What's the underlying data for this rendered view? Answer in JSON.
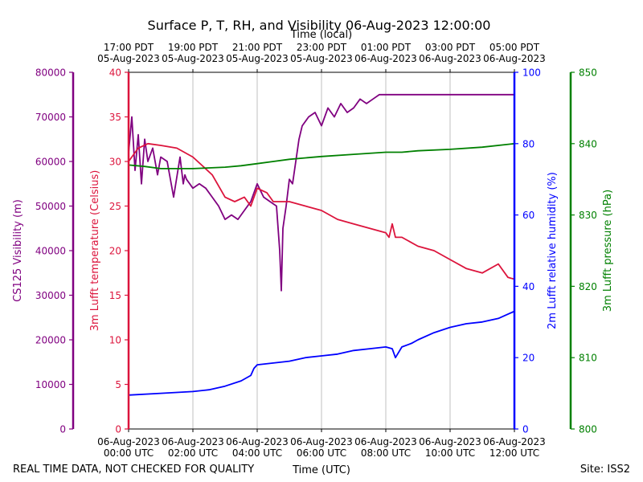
{
  "chart_data": {
    "type": "line",
    "title": "Surface P, T, RH, and Visibility 06-Aug-2023 12:00:00",
    "xlabel": "Time (UTC)",
    "top_xlabel": "Time (local)",
    "footer_left": "REAL TIME DATA, NOT CHECKED FOR QUALITY",
    "footer_right": "Site: ISS2",
    "xlim": [
      0,
      12
    ],
    "grid": "vertical",
    "bottom_ticks": [
      {
        "x": 0,
        "line1": "06-Aug-2023",
        "line2": "00:00 UTC"
      },
      {
        "x": 2,
        "line1": "06-Aug-2023",
        "line2": "02:00 UTC"
      },
      {
        "x": 4,
        "line1": "06-Aug-2023",
        "line2": "04:00 UTC"
      },
      {
        "x": 6,
        "line1": "06-Aug-2023",
        "line2": "06:00 UTC"
      },
      {
        "x": 8,
        "line1": "06-Aug-2023",
        "line2": "08:00 UTC"
      },
      {
        "x": 10,
        "line1": "06-Aug-2023",
        "line2": "10:00 UTC"
      },
      {
        "x": 12,
        "line1": "06-Aug-2023",
        "line2": "12:00 UTC"
      }
    ],
    "top_ticks": [
      {
        "x": 0,
        "line1": "17:00 PDT",
        "line2": "05-Aug-2023"
      },
      {
        "x": 2,
        "line1": "19:00 PDT",
        "line2": "05-Aug-2023"
      },
      {
        "x": 4,
        "line1": "21:00 PDT",
        "line2": "05-Aug-2023"
      },
      {
        "x": 6,
        "line1": "23:00 PDT",
        "line2": "05-Aug-2023"
      },
      {
        "x": 8,
        "line1": "01:00 PDT",
        "line2": "06-Aug-2023"
      },
      {
        "x": 10,
        "line1": "03:00 PDT",
        "line2": "06-Aug-2023"
      },
      {
        "x": 12,
        "line1": "05:00 PDT",
        "line2": "06-Aug-2023"
      }
    ],
    "axes": [
      {
        "id": "vis",
        "label": "CS125 Visibility (m)",
        "color": "#800080",
        "ylim": [
          0,
          80000
        ],
        "ticks": [
          0,
          10000,
          20000,
          30000,
          40000,
          50000,
          60000,
          70000,
          80000
        ]
      },
      {
        "id": "temp",
        "label": "3m Lufft temperature (Celsius)",
        "color": "#dc143c",
        "ylim": [
          0,
          40
        ],
        "ticks": [
          0,
          5,
          10,
          15,
          20,
          25,
          30,
          35,
          40
        ]
      },
      {
        "id": "rh",
        "label": "2m Lufft relative humidity (%)",
        "color": "#0000ff",
        "ylim": [
          0,
          100
        ],
        "ticks": [
          0,
          20,
          40,
          60,
          80,
          100
        ]
      },
      {
        "id": "pres",
        "label": "3m Lufft pressure (hPa)",
        "color": "#008000",
        "ylim": [
          800,
          850
        ],
        "ticks": [
          800,
          810,
          820,
          830,
          840,
          850
        ]
      }
    ],
    "series": [
      {
        "axis": "vis",
        "color": "#800080",
        "x": [
          0,
          0.1,
          0.2,
          0.3,
          0.4,
          0.5,
          0.6,
          0.75,
          0.9,
          1.0,
          1.2,
          1.4,
          1.6,
          1.7,
          1.75,
          1.8,
          2.0,
          2.2,
          2.4,
          2.6,
          2.8,
          3.0,
          3.2,
          3.4,
          3.6,
          3.8,
          4.0,
          4.2,
          4.4,
          4.6,
          4.7,
          4.75,
          4.8,
          4.9,
          5.0,
          5.1,
          5.2,
          5.3,
          5.4,
          5.6,
          5.8,
          6.0,
          6.2,
          6.4,
          6.6,
          6.8,
          7.0,
          7.2,
          7.4,
          7.6,
          7.8,
          8.0,
          9.0,
          10.0,
          11.0,
          12.0
        ],
        "y": [
          62000,
          70000,
          58000,
          66000,
          55000,
          65000,
          60000,
          63000,
          57000,
          61000,
          60000,
          52000,
          61000,
          55000,
          57000,
          56000,
          54000,
          55000,
          54000,
          52000,
          50000,
          47000,
          48000,
          47000,
          49000,
          51000,
          55000,
          52000,
          51000,
          50000,
          40000,
          31000,
          45000,
          50000,
          56000,
          55000,
          60000,
          65000,
          68000,
          70000,
          71000,
          68000,
          72000,
          70000,
          73000,
          71000,
          72000,
          74000,
          73000,
          74000,
          75000,
          75000,
          75000,
          75000,
          75000,
          75000
        ]
      },
      {
        "axis": "temp",
        "color": "#dc143c",
        "x": [
          0,
          0.3,
          0.6,
          1.0,
          1.5,
          2.0,
          2.3,
          2.6,
          3.0,
          3.3,
          3.6,
          3.8,
          4.0,
          4.3,
          4.5,
          4.8,
          5.0,
          5.5,
          6.0,
          6.5,
          7.0,
          7.5,
          8.0,
          8.1,
          8.2,
          8.3,
          8.5,
          9.0,
          9.5,
          10.0,
          10.5,
          11.0,
          11.5,
          11.8,
          12.0
        ],
        "y": [
          30.0,
          31.5,
          32.0,
          31.8,
          31.5,
          30.5,
          29.5,
          28.5,
          26.0,
          25.5,
          26.0,
          25.0,
          27.0,
          26.5,
          25.5,
          25.5,
          25.5,
          25.0,
          24.5,
          23.5,
          23.0,
          22.5,
          22.0,
          21.5,
          23.0,
          21.5,
          21.5,
          20.5,
          20.0,
          19.0,
          18.0,
          17.5,
          18.5,
          17.0,
          16.8
        ]
      },
      {
        "axis": "rh",
        "color": "#0000ff",
        "x": [
          0,
          1.0,
          2.0,
          2.5,
          3.0,
          3.5,
          3.8,
          3.9,
          4.0,
          4.5,
          5.0,
          5.5,
          6.0,
          6.5,
          7.0,
          7.5,
          8.0,
          8.2,
          8.3,
          8.5,
          8.8,
          9.0,
          9.5,
          10.0,
          10.5,
          11.0,
          11.5,
          12.0
        ],
        "y": [
          9.5,
          10.0,
          10.5,
          11.0,
          12.0,
          13.5,
          15.0,
          17.0,
          18.0,
          18.5,
          19.0,
          20.0,
          20.5,
          21.0,
          22.0,
          22.5,
          23.0,
          22.5,
          20.0,
          23.0,
          24.0,
          25.0,
          27.0,
          28.5,
          29.5,
          30.0,
          31.0,
          33.0
        ]
      },
      {
        "axis": "pres",
        "color": "#008000",
        "x": [
          0,
          0.5,
          1.0,
          2.0,
          2.5,
          3.0,
          3.5,
          4.0,
          4.5,
          5.0,
          6.0,
          7.0,
          8.0,
          8.5,
          9.0,
          10.0,
          11.0,
          12.0
        ],
        "y": [
          837.0,
          836.8,
          836.5,
          836.5,
          836.6,
          836.7,
          836.9,
          837.2,
          837.5,
          837.8,
          838.2,
          838.5,
          838.8,
          838.8,
          839.0,
          839.2,
          839.5,
          840.0
        ]
      }
    ]
  }
}
